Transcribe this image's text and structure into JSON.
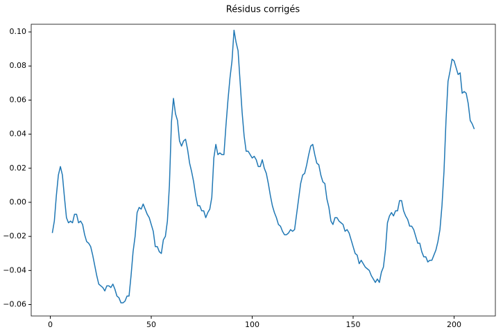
{
  "chart_data": {
    "type": "line",
    "title": "Résidus corrigés",
    "x": [
      1,
      2,
      3,
      4,
      5,
      6,
      7,
      8,
      9,
      10,
      11,
      12,
      13,
      14,
      15,
      16,
      17,
      18,
      19,
      20,
      21,
      22,
      23,
      24,
      25,
      26,
      27,
      28,
      29,
      30,
      31,
      32,
      33,
      34,
      35,
      36,
      37,
      38,
      39,
      40,
      41,
      42,
      43,
      44,
      45,
      46,
      47,
      48,
      49,
      50,
      51,
      52,
      53,
      54,
      55,
      56,
      57,
      58,
      59,
      60,
      61,
      62,
      63,
      64,
      65,
      66,
      67,
      68,
      69,
      70,
      71,
      72,
      73,
      74,
      75,
      76,
      77,
      78,
      79,
      80,
      81,
      82,
      83,
      84,
      85,
      86,
      87,
      88,
      89,
      90,
      91,
      92,
      93,
      94,
      95,
      96,
      97,
      98,
      99,
      100,
      101,
      102,
      103,
      104,
      105,
      106,
      107,
      108,
      109,
      110,
      111,
      112,
      113,
      114,
      115,
      116,
      117,
      118,
      119,
      120,
      121,
      122,
      123,
      124,
      125,
      126,
      127,
      128,
      129,
      130,
      131,
      132,
      133,
      134,
      135,
      136,
      137,
      138,
      139,
      140,
      141,
      142,
      143,
      144,
      145,
      146,
      147,
      148,
      149,
      150,
      151,
      152,
      153,
      154,
      155,
      156,
      157,
      158,
      159,
      160,
      161,
      162,
      163,
      164,
      165,
      166,
      167,
      168,
      169,
      170,
      171,
      172,
      173,
      174,
      175,
      176,
      177,
      178,
      179,
      180,
      181,
      182,
      183,
      184,
      185,
      186,
      187,
      188,
      189,
      190,
      191,
      192,
      193,
      194,
      195,
      196,
      197,
      198,
      199,
      200,
      201,
      202,
      203,
      204,
      205,
      206,
      207,
      208,
      209,
      210
    ],
    "series": [
      {
        "color": "#1f77b4",
        "values": [
          -0.018,
          -0.011,
          0.004,
          0.016,
          0.021,
          0.016,
          0.003,
          -0.009,
          -0.012,
          -0.011,
          -0.012,
          -0.007,
          -0.007,
          -0.012,
          -0.011,
          -0.013,
          -0.019,
          -0.023,
          -0.024,
          -0.026,
          -0.031,
          -0.037,
          -0.043,
          -0.048,
          -0.049,
          -0.05,
          -0.052,
          -0.049,
          -0.049,
          -0.05,
          -0.048,
          -0.051,
          -0.055,
          -0.056,
          -0.059,
          -0.059,
          -0.058,
          -0.055,
          -0.055,
          -0.043,
          -0.029,
          -0.02,
          -0.006,
          -0.003,
          -0.004,
          -0.001,
          -0.004,
          -0.007,
          -0.009,
          -0.013,
          -0.017,
          -0.026,
          -0.026,
          -0.029,
          -0.03,
          -0.022,
          -0.02,
          -0.011,
          0.01,
          0.047,
          0.061,
          0.052,
          0.048,
          0.036,
          0.033,
          0.036,
          0.037,
          0.031,
          0.023,
          0.018,
          0.012,
          0.004,
          -0.002,
          -0.002,
          -0.005,
          -0.005,
          -0.009,
          -0.006,
          -0.004,
          0.003,
          0.026,
          0.034,
          0.028,
          0.029,
          0.028,
          0.028,
          0.045,
          0.06,
          0.073,
          0.083,
          0.101,
          0.094,
          0.089,
          0.071,
          0.053,
          0.039,
          0.03,
          0.03,
          0.028,
          0.026,
          0.027,
          0.025,
          0.021,
          0.021,
          0.025,
          0.02,
          0.017,
          0.011,
          0.004,
          -0.002,
          -0.006,
          -0.009,
          -0.013,
          -0.014,
          -0.017,
          -0.019,
          -0.019,
          -0.018,
          -0.016,
          -0.017,
          -0.016,
          -0.007,
          0.002,
          0.011,
          0.016,
          0.017,
          0.022,
          0.028,
          0.033,
          0.034,
          0.028,
          0.023,
          0.022,
          0.016,
          0.012,
          0.011,
          0.002,
          -0.003,
          -0.011,
          -0.013,
          -0.009,
          -0.009,
          -0.011,
          -0.012,
          -0.013,
          -0.017,
          -0.016,
          -0.018,
          -0.022,
          -0.026,
          -0.03,
          -0.031,
          -0.036,
          -0.034,
          -0.036,
          -0.038,
          -0.039,
          -0.04,
          -0.043,
          -0.045,
          -0.047,
          -0.045,
          -0.047,
          -0.041,
          -0.038,
          -0.028,
          -0.012,
          -0.008,
          -0.006,
          -0.008,
          -0.005,
          -0.005,
          0.001,
          0.001,
          -0.005,
          -0.008,
          -0.01,
          -0.014,
          -0.014,
          -0.016,
          -0.02,
          -0.024,
          -0.024,
          -0.029,
          -0.032,
          -0.032,
          -0.035,
          -0.034,
          -0.034,
          -0.031,
          -0.028,
          -0.023,
          -0.016,
          -0.002,
          0.018,
          0.048,
          0.071,
          0.077,
          0.084,
          0.083,
          0.079,
          0.075,
          0.076,
          0.064,
          0.065,
          0.064,
          0.058,
          0.048,
          0.046,
          0.043
        ]
      }
    ],
    "xlim": [
      -9.45,
      220.45
    ],
    "xticks": [
      0,
      50,
      100,
      150,
      200
    ],
    "ylim": [
      -0.0667,
      0.1045
    ],
    "yticks": [
      {
        "value": -0.06,
        "label": "−0.06"
      },
      {
        "value": -0.04,
        "label": "−0.04"
      },
      {
        "value": -0.02,
        "label": "−0.02"
      },
      {
        "value": 0,
        "label": "0.00"
      },
      {
        "value": 0.02,
        "label": "0.02"
      },
      {
        "value": 0.04,
        "label": "0.04"
      },
      {
        "value": 0.06,
        "label": "0.06"
      },
      {
        "value": 0.08,
        "label": "0.08"
      },
      {
        "value": 0.1,
        "label": "0.10"
      }
    ],
    "grid": false
  }
}
